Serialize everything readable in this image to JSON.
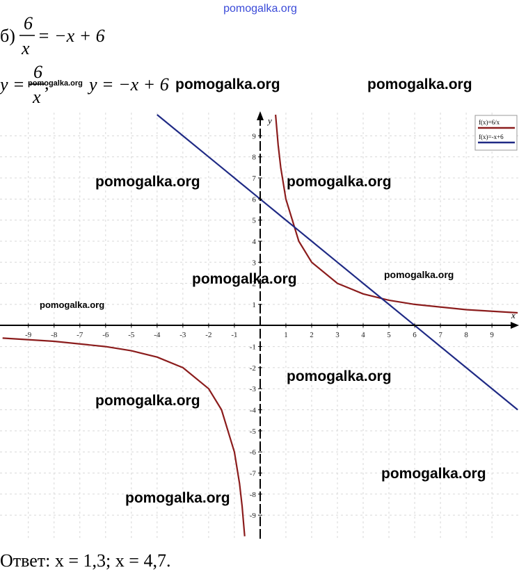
{
  "header": {
    "site": "pomogalka.org"
  },
  "equation": {
    "label": "б)",
    "numerator": "6",
    "denominator": "x",
    "rhs": "= −x + 6"
  },
  "functions": {
    "lhs": "y =",
    "numerator": "6",
    "denominator": "x",
    "comma": ",",
    "second": "y = −x + 6"
  },
  "watermarks": [
    "pomogalka.org",
    "pomogalka.org",
    "pomogalka.org",
    "pomogalka.org",
    "pomogalka.org",
    "pomogalka.org",
    "pomogalka.org",
    "pomogalka.org",
    "pomogalka.org",
    "pomogalka.org",
    "pomogalka.org",
    "pomogalka.org",
    "pomogalka.org"
  ],
  "chart_data": {
    "type": "line",
    "x": [
      -10,
      -8,
      -6,
      -5,
      -4,
      -3,
      -2,
      -1.5,
      -1,
      -0.8,
      -0.7,
      -0.6,
      0,
      0.6,
      0.7,
      0.8,
      1,
      1.5,
      2,
      3,
      4,
      5,
      6,
      8,
      10
    ],
    "series": [
      {
        "name": "f(x)=6/x",
        "color": "#8b1c1c",
        "values": [
          -0.6,
          -0.75,
          -1,
          -1.2,
          -1.5,
          -2,
          -3,
          -4,
          -6,
          -7.5,
          -8.57,
          -10,
          null,
          10,
          8.57,
          7.5,
          6,
          4,
          3,
          2,
          1.5,
          1.2,
          1,
          0.75,
          0.6
        ]
      },
      {
        "name": "f(x)=-x+6",
        "color": "#1f2a85",
        "values": [
          null,
          null,
          null,
          null,
          10,
          9,
          8,
          7.5,
          7,
          6.8,
          6.7,
          6.6,
          6,
          5.4,
          5.3,
          5.2,
          5,
          4.5,
          4,
          3,
          2,
          1,
          0,
          -2,
          -4
        ]
      }
    ],
    "xlabel": "x",
    "ylabel": "y",
    "xlim": [
      -10.1,
      10.05
    ],
    "ylim": [
      -10.15,
      10.1
    ],
    "xticks": [
      -9,
      -8,
      -7,
      -6,
      -5,
      -4,
      -3,
      -2,
      -1,
      1,
      2,
      3,
      4,
      5,
      6,
      7,
      8,
      9
    ],
    "yticks": [
      -9,
      -8,
      -7,
      -6,
      -5,
      -4,
      -3,
      -2,
      -1,
      1,
      2,
      3,
      4,
      5,
      6,
      7,
      8,
      9
    ],
    "grid": true,
    "legend": "upper right"
  },
  "answer": "Ответ: x = 1,3;   x = 4,7."
}
